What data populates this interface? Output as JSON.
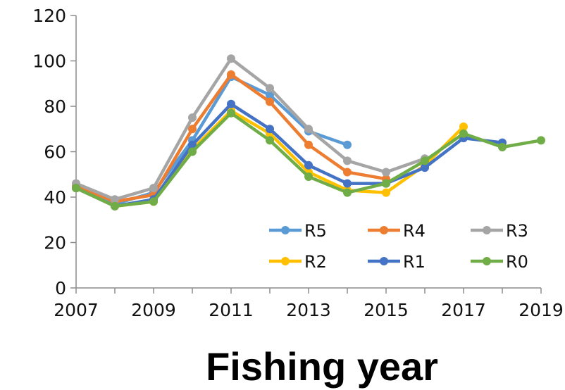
{
  "chart_data": {
    "type": "line",
    "xlabel": "Fishing year",
    "ylabel": "",
    "title": "",
    "xlim": [
      2007,
      2019
    ],
    "ylim": [
      0,
      120
    ],
    "xticks": [
      2007,
      2009,
      2011,
      2013,
      2015,
      2017,
      2019
    ],
    "yticks": [
      0,
      20,
      40,
      60,
      80,
      100,
      120
    ],
    "grid": false,
    "legend_position": "bottom-right",
    "series": [
      {
        "name": "R5",
        "color": "#5B9BD5",
        "x": [
          2007,
          2008,
          2009,
          2010,
          2011,
          2012,
          2013,
          2014
        ],
        "values": [
          44,
          37,
          42,
          65,
          93,
          85,
          69,
          63
        ]
      },
      {
        "name": "R4",
        "color": "#ED7D31",
        "x": [
          2007,
          2008,
          2009,
          2010,
          2011,
          2012,
          2013,
          2014,
          2015
        ],
        "values": [
          45,
          38,
          41,
          70,
          94,
          82,
          63,
          51,
          48
        ]
      },
      {
        "name": "R3",
        "color": "#A5A5A5",
        "x": [
          2007,
          2008,
          2009,
          2010,
          2011,
          2012,
          2013,
          2014,
          2015,
          2016
        ],
        "values": [
          46,
          39,
          44,
          75,
          101,
          88,
          70,
          56,
          51,
          57
        ]
      },
      {
        "name": "R2",
        "color": "#FFC000",
        "x": [
          2007,
          2008,
          2009,
          2010,
          2011,
          2012,
          2013,
          2014,
          2015,
          2016,
          2017
        ],
        "values": [
          44,
          36,
          38,
          61,
          78,
          68,
          51,
          43,
          42,
          54,
          71
        ]
      },
      {
        "name": "R1",
        "color": "#4472C4",
        "x": [
          2007,
          2008,
          2009,
          2010,
          2011,
          2012,
          2013,
          2014,
          2015,
          2016,
          2017,
          2018
        ],
        "values": [
          44,
          36,
          39,
          63,
          81,
          70,
          54,
          46,
          46,
          53,
          66,
          64
        ]
      },
      {
        "name": "R0",
        "color": "#70AD47",
        "x": [
          2007,
          2008,
          2009,
          2010,
          2011,
          2012,
          2013,
          2014,
          2015,
          2016,
          2017,
          2018,
          2019
        ],
        "values": [
          44,
          36,
          38,
          60,
          77,
          65,
          49,
          42,
          46,
          56,
          68,
          62,
          65
        ]
      }
    ]
  }
}
